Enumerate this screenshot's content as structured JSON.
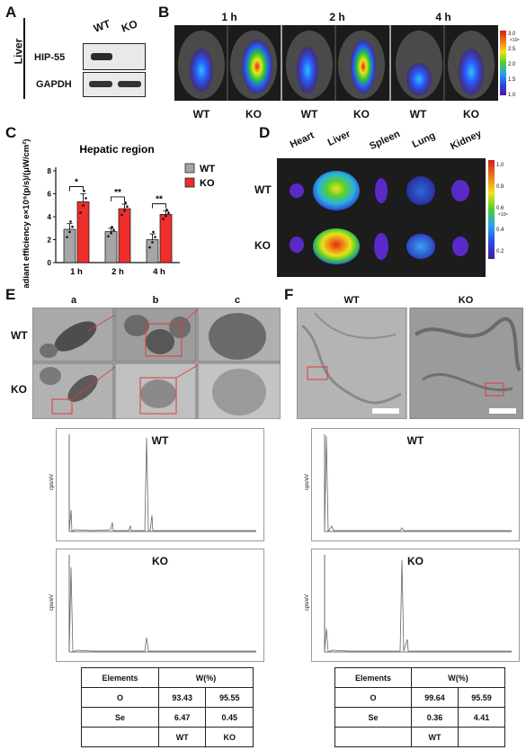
{
  "panels": {
    "A": {
      "label": "A",
      "tissue": "Liver",
      "columns": [
        "WT",
        "KO"
      ],
      "rows": [
        "HIP-55",
        "GAPDH"
      ]
    },
    "B": {
      "label": "B",
      "timepoints": [
        "1 h",
        "2 h",
        "4 h"
      ],
      "genotypes": [
        "WT",
        "KO",
        "WT",
        "KO",
        "WT",
        "KO"
      ],
      "colorbar_ticks": [
        "3.0",
        "2.5",
        "2.0",
        "1.5",
        "1.0"
      ],
      "colorbar_unit": "×10⁸"
    },
    "C": {
      "label": "C"
    },
    "D": {
      "label": "D",
      "organs": [
        "Heart",
        "Liver",
        "Spleen",
        "Lung",
        "Kidney"
      ],
      "rows": [
        "WT",
        "KO"
      ],
      "colorbar_ticks": [
        "1.0",
        "0.8",
        "0.6",
        "0.4",
        "0.2"
      ],
      "colorbar_unit": "×10⁸"
    },
    "E": {
      "label": "E",
      "columns": [
        "a",
        "b",
        "c"
      ],
      "rows": [
        "WT",
        "KO"
      ],
      "spectra": [
        {
          "title": "WT",
          "ylabel": "cps/eV"
        },
        {
          "title": "KO",
          "ylabel": "cps/eV"
        }
      ],
      "table": {
        "header": [
          "Elements",
          "W(%)"
        ],
        "rows": [
          [
            "O",
            "93.43",
            "95.55"
          ],
          [
            "Se",
            "6.47",
            "0.45"
          ],
          [
            "",
            "WT",
            "KO"
          ]
        ]
      }
    },
    "F": {
      "label": "F",
      "columns": [
        "WT",
        "KO"
      ],
      "spectra": [
        {
          "title": "WT",
          "ylabel": "cps/eV"
        },
        {
          "title": "KO",
          "ylabel": "cps/eV"
        }
      ],
      "table": {
        "header": [
          "Elements",
          "W(%)"
        ],
        "rows": [
          [
            "O",
            "99.64",
            "95.59"
          ],
          [
            "Se",
            "0.36",
            "4.41"
          ],
          [
            "",
            "WT",
            ""
          ]
        ]
      }
    }
  },
  "chart_data": {
    "type": "bar",
    "title": "Hepatic region",
    "ylabel": "Radiant efficiency e×10⁹(p/s)/(μW/cm²)",
    "categories": [
      "1 h",
      "2 h",
      "4 h"
    ],
    "ylim": [
      0,
      8
    ],
    "yticks": [
      "0",
      "2",
      "4",
      "6",
      "8"
    ],
    "legend_position": "right",
    "series": [
      {
        "name": "WT",
        "color": "#a6a6a6",
        "values": [
          2.9,
          2.7,
          2.0
        ],
        "errors": [
          0.5,
          0.3,
          0.5
        ]
      },
      {
        "name": "KO",
        "color": "#ee2d2d",
        "values": [
          5.3,
          4.7,
          4.2
        ],
        "errors": [
          0.7,
          0.4,
          0.3
        ]
      }
    ],
    "significance": [
      "*",
      "**",
      "**"
    ]
  }
}
